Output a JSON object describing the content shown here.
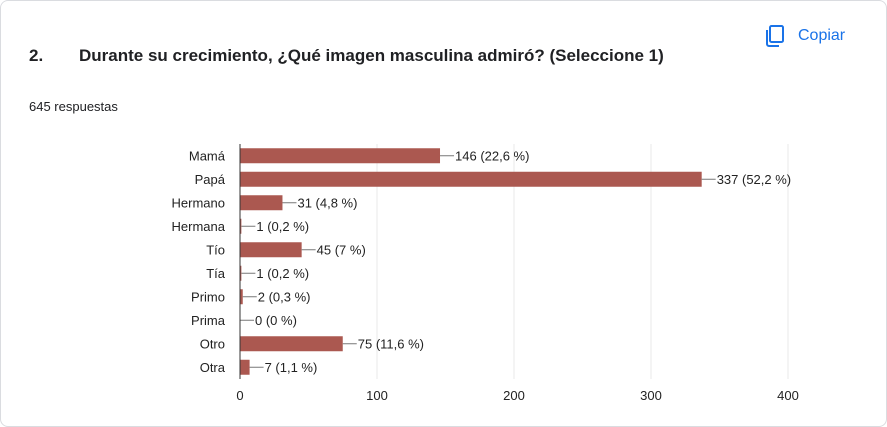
{
  "question": {
    "number": "2.",
    "title": "Durante su crecimiento, ¿Qué imagen masculina admiró? (Seleccione 1)",
    "responses": "645 respuestas"
  },
  "copy": {
    "label": "Copiar",
    "icon": "copy-icon"
  },
  "colors": {
    "bar": "#ab5850",
    "accent": "#1a73e8",
    "grid": "#e8e8e8",
    "axis": "#333333"
  },
  "chart_data": {
    "type": "bar",
    "orientation": "horizontal",
    "categories": [
      "Mamá",
      "Papá",
      "Hermano",
      "Hermana",
      "Tío",
      "Tía",
      "Primo",
      "Prima",
      "Otro",
      "Otra"
    ],
    "values": [
      146,
      337,
      31,
      1,
      45,
      1,
      2,
      0,
      75,
      7
    ],
    "data_labels": [
      "146 (22,6 %)",
      "337 (52,2 %)",
      "31 (4,8 %)",
      "1 (0,2 %)",
      "45 (7 %)",
      "1 (0,2 %)",
      "2 (0,3 %)",
      "0 (0 %)",
      "75 (11,6 %)",
      "7 (1,1 %)"
    ],
    "xlim": [
      0,
      400
    ],
    "xticks": [
      0,
      100,
      200,
      300,
      400
    ],
    "grid": true
  }
}
